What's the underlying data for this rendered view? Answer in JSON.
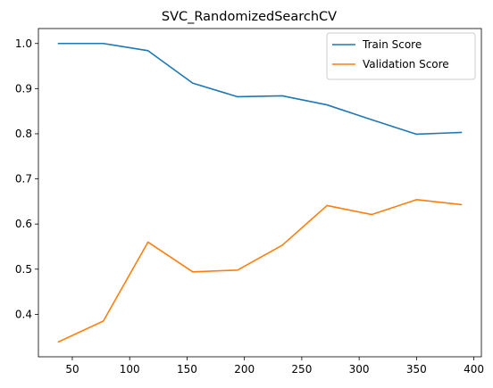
{
  "chart_data": {
    "type": "line",
    "title": "SVC_RandomizedSearchCV",
    "xlabel": "",
    "ylabel": "",
    "x": [
      38,
      77,
      116,
      155,
      194,
      233,
      272,
      311,
      350,
      389
    ],
    "series": [
      {
        "name": "Train Score",
        "color": "#1f77b4",
        "values": [
          1.0,
          1.0,
          0.984,
          0.912,
          0.882,
          0.884,
          0.864,
          0.831,
          0.799,
          0.803
        ]
      },
      {
        "name": "Validation Score",
        "color": "#ff7f0e",
        "values": [
          0.339,
          0.385,
          0.56,
          0.494,
          0.498,
          0.553,
          0.641,
          0.621,
          0.654,
          0.643
        ]
      }
    ],
    "xlim": [
      20.45,
      406.55
    ],
    "ylim": [
      0.3059,
      1.0331
    ],
    "xticks": [
      50,
      100,
      150,
      200,
      250,
      300,
      350,
      400
    ],
    "yticks": [
      0.4,
      0.5,
      0.6,
      0.7,
      0.8,
      0.9,
      1.0
    ],
    "xtick_labels": [
      "50",
      "100",
      "150",
      "200",
      "250",
      "300",
      "350",
      "400"
    ],
    "ytick_labels": [
      "0.4",
      "0.5",
      "0.6",
      "0.7",
      "0.8",
      "0.9",
      "1.0"
    ],
    "legend_position": "top-right",
    "grid": false
  }
}
